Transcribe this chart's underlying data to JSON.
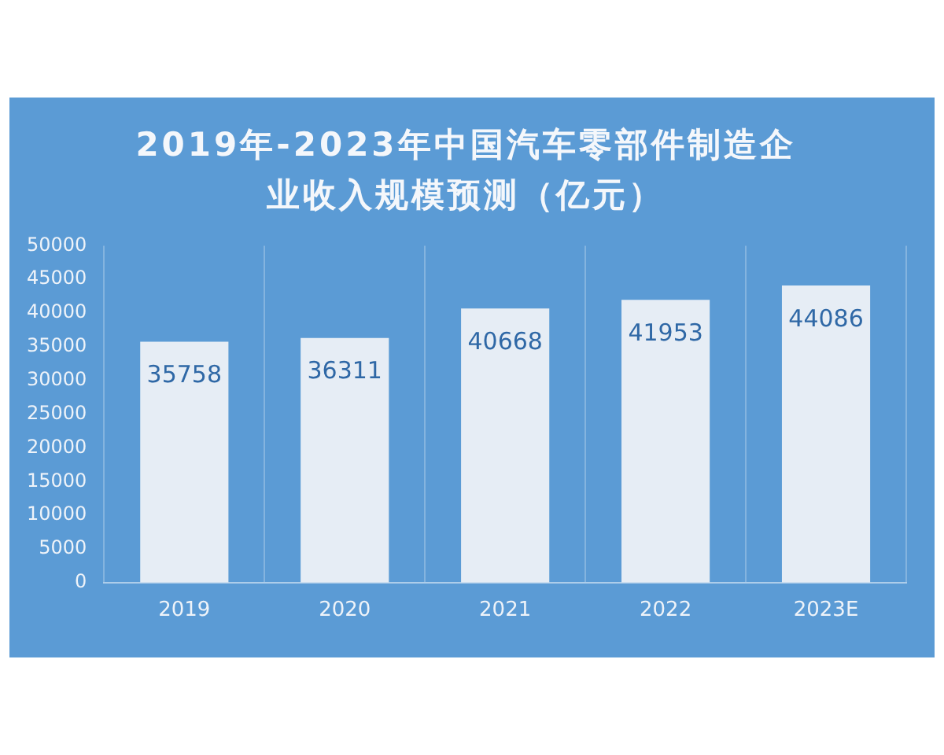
{
  "chart_data": {
    "type": "bar",
    "title": "2019年-2023年中国汽车零部件制造企业收入规模预测（亿元）",
    "categories": [
      "2019",
      "2020",
      "2021",
      "2022",
      "2023E"
    ],
    "values": [
      35758,
      36311,
      40668,
      41953,
      44086
    ],
    "color": "#e6edf5",
    "ylim": [
      0,
      50000
    ],
    "yticks": [
      0,
      5000,
      10000,
      15000,
      20000,
      25000,
      30000,
      35000,
      40000,
      45000,
      50000
    ],
    "grid": "x",
    "data_labels": true
  }
}
